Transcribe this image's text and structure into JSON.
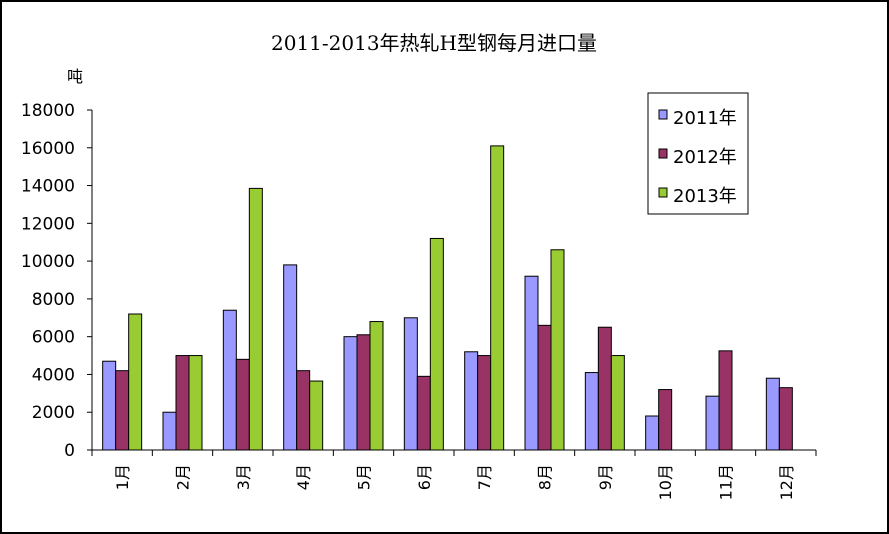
{
  "chart_data": {
    "type": "bar",
    "title": "2011-2013年热轧H型钢每月进口量",
    "ylabel": "吨",
    "xlabel": "",
    "ylim": [
      0,
      18000
    ],
    "yticks": [
      "0",
      "2000",
      "4000",
      "6000",
      "8000",
      "10000",
      "12000",
      "14000",
      "16000",
      "18000"
    ],
    "categories": [
      "1月",
      "2月",
      "3月",
      "4月",
      "5月",
      "6月",
      "7月",
      "8月",
      "9月",
      "10月",
      "11月",
      "12月"
    ],
    "grid": false,
    "legend_position": "top-right",
    "series": [
      {
        "name": "2011年",
        "color": "#9999ff",
        "values": [
          4700,
          2000,
          7400,
          9800,
          6000,
          7000,
          5200,
          9200,
          4100,
          1800,
          2850,
          3800
        ]
      },
      {
        "name": "2012年",
        "color": "#993366",
        "values": [
          4200,
          5000,
          4800,
          4200,
          6100,
          3900,
          5000,
          6600,
          6500,
          3200,
          5250,
          3300
        ]
      },
      {
        "name": "2013年",
        "color": "#99cc33",
        "values": [
          7200,
          5000,
          13850,
          3650,
          6800,
          11200,
          16100,
          10600,
          5000,
          null,
          null,
          null
        ]
      }
    ]
  }
}
